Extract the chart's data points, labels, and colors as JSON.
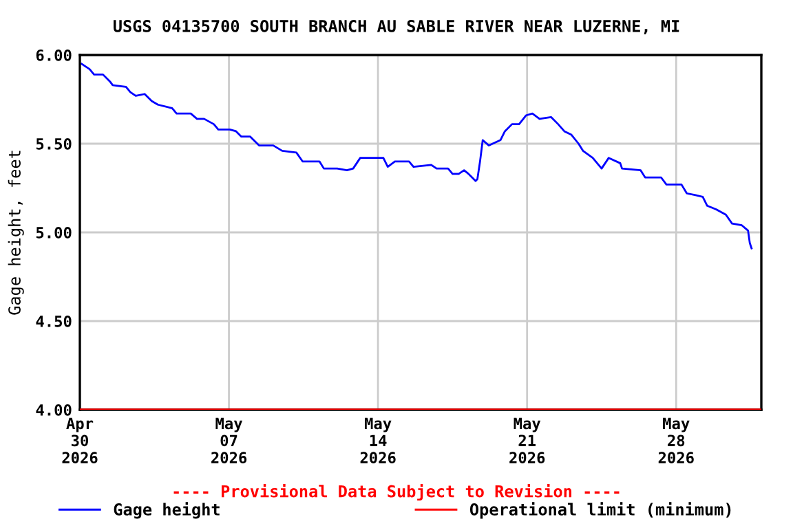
{
  "chart_data": {
    "type": "line",
    "title": "USGS 04135700 SOUTH BRANCH AU SABLE RIVER NEAR LUZERNE, MI",
    "ylabel": "Gage height, feet",
    "xlim": [
      "2026-04-30T00:00",
      "2026-06-01T00:00"
    ],
    "xticks": [
      {
        "value": "2026-04-30T00:00",
        "label": "Apr\n30\n2026"
      },
      {
        "value": "2026-05-07T00:00",
        "label": "May\n07\n2026"
      },
      {
        "value": "2026-05-14T00:00",
        "label": "May\n14\n2026"
      },
      {
        "value": "2026-05-21T00:00",
        "label": "May\n21\n2026"
      },
      {
        "value": "2026-05-28T00:00",
        "label": "May\n28\n2026"
      }
    ],
    "ylim": [
      4.0,
      6.0
    ],
    "yticks": [
      {
        "value": 4.0,
        "label": "4.00"
      },
      {
        "value": 4.5,
        "label": "4.50"
      },
      {
        "value": 5.0,
        "label": "5.00"
      },
      {
        "value": 5.5,
        "label": "5.50"
      },
      {
        "value": 6.0,
        "label": "6.00"
      }
    ],
    "grid": true,
    "legend": "bottom",
    "line_style": "solid",
    "annotations": [
      "---- Provisional Data Subject to Revision ----"
    ],
    "ref_lines": [
      {
        "axis": "y",
        "value": 4.0,
        "label": "Operational limit (minimum)",
        "color": "#ff0000"
      }
    ],
    "series": [
      {
        "name": "Gage height",
        "color": "#0000ff",
        "x": [
          "2026-04-30T02:00",
          "2026-04-30T11:00",
          "2026-04-30T16:00",
          "2026-05-01T02:00",
          "2026-05-01T10:00",
          "2026-05-01T13:00",
          "2026-05-02T04:00",
          "2026-05-02T09:00",
          "2026-05-02T15:00",
          "2026-05-03T01:00",
          "2026-05-03T09:00",
          "2026-05-03T16:00",
          "2026-05-04T08:00",
          "2026-05-04T13:00",
          "2026-05-05T05:00",
          "2026-05-05T12:00",
          "2026-05-05T20:00",
          "2026-05-06T07:00",
          "2026-05-06T12:00",
          "2026-05-07T01:00",
          "2026-05-07T08:00",
          "2026-05-07T14:00",
          "2026-05-08T00:00",
          "2026-05-08T10:00",
          "2026-05-09T02:00",
          "2026-05-09T12:00",
          "2026-05-10T04:00",
          "2026-05-10T11:00",
          "2026-05-10T19:00",
          "2026-05-11T06:00",
          "2026-05-11T11:00",
          "2026-05-12T02:00",
          "2026-05-12T13:00",
          "2026-05-12T20:00",
          "2026-05-13T04:00",
          "2026-05-14T06:00",
          "2026-05-14T11:00",
          "2026-05-14T19:00",
          "2026-05-15T11:00",
          "2026-05-15T16:00",
          "2026-05-16T12:00",
          "2026-05-16T18:00",
          "2026-05-17T07:00",
          "2026-05-17T12:00",
          "2026-05-17T19:00",
          "2026-05-18T01:00",
          "2026-05-18T06:00",
          "2026-05-18T14:00",
          "2026-05-18T16:00",
          "2026-05-18T19:00",
          "2026-05-18T22:00",
          "2026-05-19T05:00",
          "2026-05-19T18:00",
          "2026-05-19T23:00",
          "2026-05-20T07:00",
          "2026-05-20T15:00",
          "2026-05-20T23:00",
          "2026-05-21T06:00",
          "2026-05-21T14:00",
          "2026-05-22T03:00",
          "2026-05-22T11:00",
          "2026-05-22T18:00",
          "2026-05-23T02:00",
          "2026-05-23T10:00",
          "2026-05-23T15:00",
          "2026-05-24T02:00",
          "2026-05-24T12:00",
          "2026-05-24T20:00",
          "2026-05-25T09:00",
          "2026-05-25T11:00",
          "2026-05-26T08:00",
          "2026-05-26T13:00",
          "2026-05-27T07:00",
          "2026-05-27T13:00",
          "2026-05-28T06:00",
          "2026-05-28T12:00",
          "2026-05-28T22:00",
          "2026-05-29T06:00",
          "2026-05-29T11:00",
          "2026-05-29T21:00",
          "2026-05-30T08:00",
          "2026-05-30T15:00",
          "2026-05-31T02:00",
          "2026-05-31T09:00",
          "2026-05-31T11:00",
          "2026-05-31T13:00"
        ],
        "values": [
          5.95,
          5.92,
          5.89,
          5.89,
          5.85,
          5.83,
          5.82,
          5.79,
          5.77,
          5.78,
          5.74,
          5.72,
          5.7,
          5.67,
          5.67,
          5.64,
          5.64,
          5.61,
          5.58,
          5.58,
          5.57,
          5.54,
          5.54,
          5.49,
          5.49,
          5.46,
          5.45,
          5.4,
          5.4,
          5.4,
          5.36,
          5.36,
          5.35,
          5.36,
          5.42,
          5.42,
          5.37,
          5.4,
          5.4,
          5.37,
          5.38,
          5.36,
          5.36,
          5.33,
          5.33,
          5.35,
          5.33,
          5.29,
          5.3,
          5.4,
          5.52,
          5.49,
          5.52,
          5.57,
          5.61,
          5.61,
          5.66,
          5.67,
          5.64,
          5.65,
          5.61,
          5.57,
          5.55,
          5.5,
          5.46,
          5.42,
          5.36,
          5.42,
          5.39,
          5.36,
          5.35,
          5.31,
          5.31,
          5.27,
          5.27,
          5.22,
          5.21,
          5.2,
          5.15,
          5.13,
          5.1,
          5.05,
          5.04,
          5.01,
          4.94,
          4.91
        ]
      }
    ]
  }
}
